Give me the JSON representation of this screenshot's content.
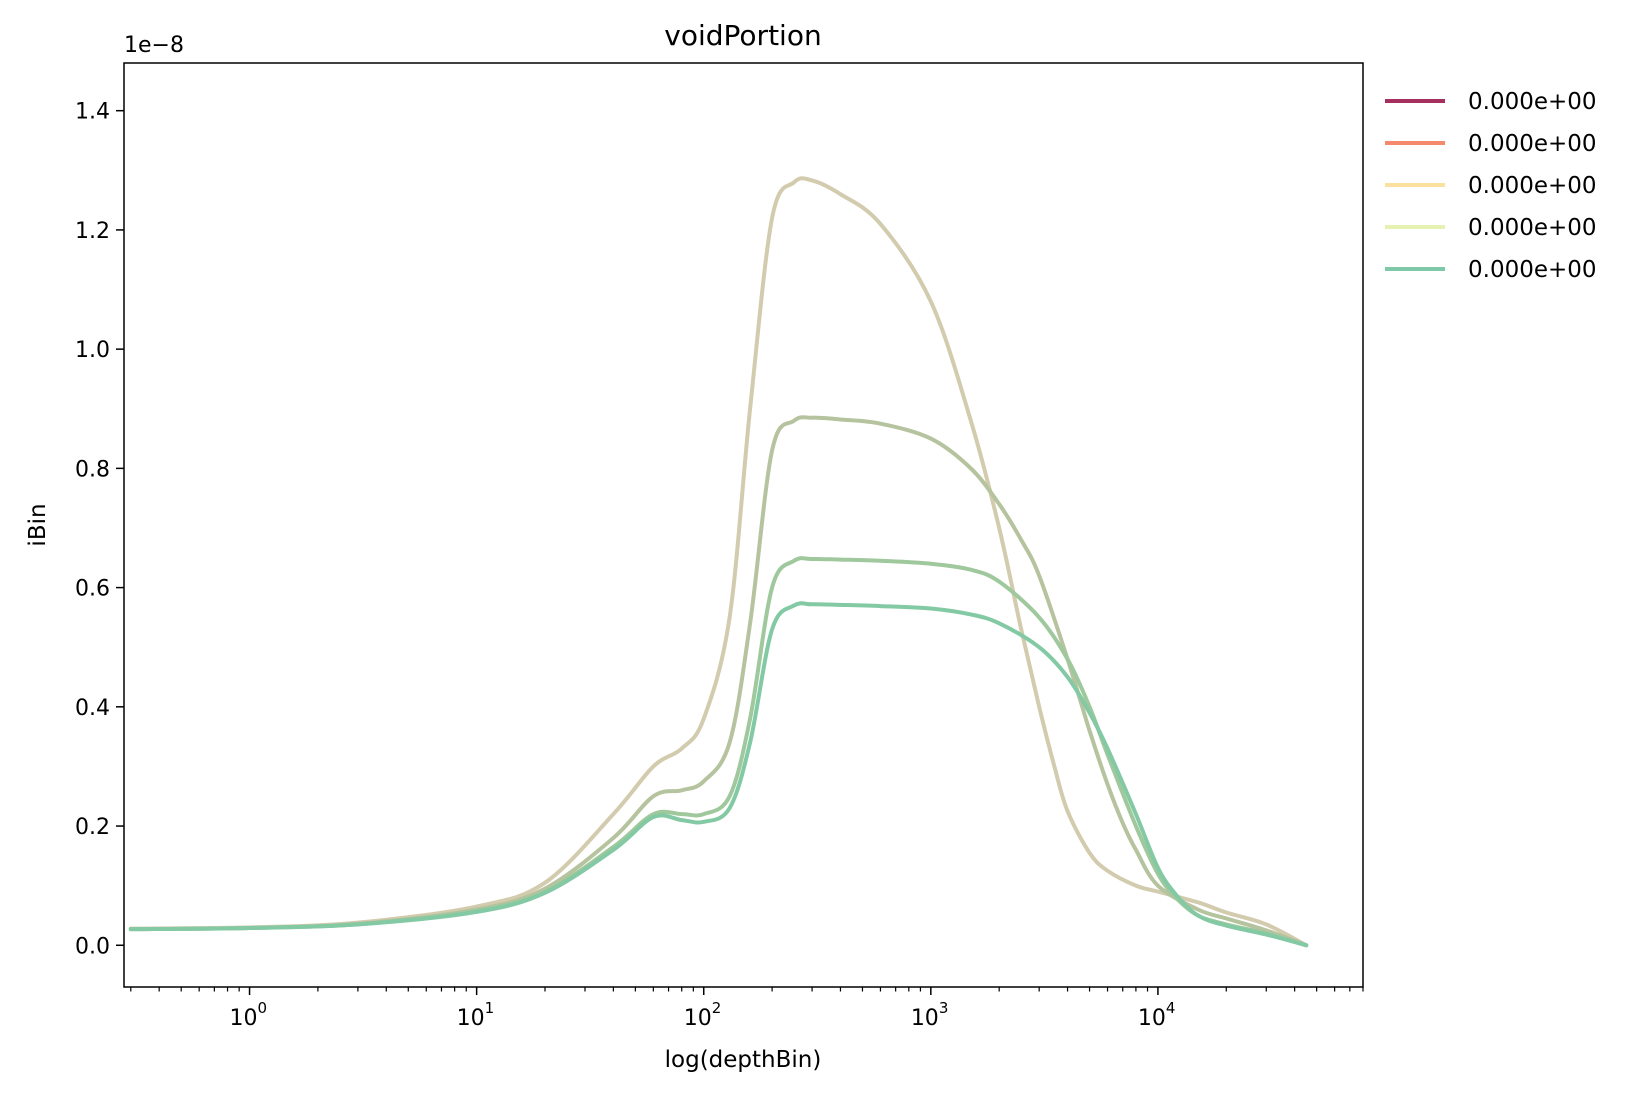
{
  "chart_data": {
    "type": "line",
    "title": "voidPortion",
    "xlabel": "log(depthBin)",
    "ylabel": "iBin",
    "x_scale": "log",
    "xlim": [
      0.28,
      80000
    ],
    "ylim": [
      -7e-10,
      1.48e-08
    ],
    "y_offset_text": "1e−8",
    "x_ticks": [
      {
        "value": 1,
        "base": "10",
        "exp": "0"
      },
      {
        "value": 10,
        "base": "10",
        "exp": "1"
      },
      {
        "value": 100,
        "base": "10",
        "exp": "2"
      },
      {
        "value": 1000,
        "base": "10",
        "exp": "3"
      },
      {
        "value": 10000,
        "base": "10",
        "exp": "4"
      }
    ],
    "y_ticks": [
      {
        "value": 0.0,
        "label": "0.0"
      },
      {
        "value": 2e-09,
        "label": "0.2"
      },
      {
        "value": 4e-09,
        "label": "0.4"
      },
      {
        "value": 6e-09,
        "label": "0.6"
      },
      {
        "value": 8e-09,
        "label": "0.8"
      },
      {
        "value": 1e-08,
        "label": "1.0"
      },
      {
        "value": 1.2e-08,
        "label": "1.2"
      },
      {
        "value": 1.4e-08,
        "label": "1.4"
      }
    ],
    "grid": false,
    "legend_position": "outside-top-right",
    "legend": [
      {
        "label": "0.000e+00",
        "color": "#a3305e"
      },
      {
        "label": "0.000e+00",
        "color": "#f4896b"
      },
      {
        "label": "0.000e+00",
        "color": "#fbe0a0"
      },
      {
        "label": "0.000e+00",
        "color": "#e6f2b2"
      },
      {
        "label": "0.000e+00",
        "color": "#7ec9a8"
      }
    ],
    "series": [
      {
        "color": "#d2cbae",
        "x": [
          0.3,
          1,
          3,
          10,
          20,
          40,
          60,
          80,
          100,
          130,
          160,
          200,
          250,
          300,
          400,
          600,
          1000,
          1500,
          2000,
          2500,
          3000,
          3500,
          4000,
          5000,
          6000,
          8000,
          10000,
          15000,
          20000,
          30000,
          45000
        ],
        "y": [
          2.8e-10,
          3e-10,
          3.8e-10,
          6.5e-10,
          1.05e-09,
          2.2e-09,
          3e-09,
          3.3e-09,
          3.8e-09,
          5.5e-09,
          9e-09,
          1.22e-08,
          1.28e-08,
          1.283e-08,
          1.26e-08,
          1.21e-08,
          1.08e-08,
          8.8e-09,
          7e-09,
          5.3e-09,
          4e-09,
          3e-09,
          2.25e-09,
          1.55e-09,
          1.25e-09,
          1e-09,
          9e-10,
          7.2e-10,
          5.5e-10,
          3.5e-10,
          0.0
        ]
      },
      {
        "color": "#b6c39f",
        "x": [
          0.3,
          1,
          3,
          10,
          20,
          40,
          60,
          80,
          100,
          130,
          160,
          200,
          250,
          300,
          400,
          600,
          1000,
          1500,
          2000,
          2500,
          3000,
          4000,
          5000,
          6000,
          7000,
          8000,
          10000,
          15000,
          20000,
          30000,
          45000
        ],
        "y": [
          2.7e-10,
          2.9e-10,
          3.6e-10,
          6e-10,
          9.5e-10,
          1.8e-09,
          2.5e-09,
          2.6e-09,
          2.75e-09,
          3.4e-09,
          5.4e-09,
          8.3e-09,
          8.8e-09,
          8.85e-09,
          8.82e-09,
          8.75e-09,
          8.5e-09,
          8e-09,
          7.4e-09,
          6.8e-09,
          6.2e-09,
          4.8e-09,
          3.6e-09,
          2.7e-09,
          2.05e-09,
          1.6e-09,
          1e-09,
          6e-10,
          4.5e-10,
          2.5e-10,
          0.0
        ]
      },
      {
        "color": "#9fc89c",
        "x": [
          0.3,
          1,
          3,
          10,
          20,
          40,
          60,
          80,
          100,
          130,
          160,
          200,
          250,
          300,
          400,
          600,
          1000,
          1500,
          2000,
          3000,
          4000,
          5000,
          6000,
          8000,
          10000,
          12000,
          15000,
          20000,
          30000,
          45000
        ],
        "y": [
          2.7e-10,
          2.9e-10,
          3.5e-10,
          5.8e-10,
          9e-10,
          1.65e-09,
          2.2e-09,
          2.2e-09,
          2.2e-09,
          2.5e-09,
          3.8e-09,
          6e-09,
          6.45e-09,
          6.48e-09,
          6.47e-09,
          6.45e-09,
          6.4e-09,
          6.3e-09,
          6.1e-09,
          5.5e-09,
          4.8e-09,
          4e-09,
          3.2e-09,
          2e-09,
          1.2e-09,
          8e-10,
          5e-10,
          3.5e-10,
          2e-10,
          0.0
        ]
      },
      {
        "color": "#82c9a4",
        "x": [
          0.3,
          1,
          3,
          10,
          20,
          40,
          60,
          80,
          100,
          130,
          160,
          200,
          250,
          300,
          400,
          600,
          1000,
          1500,
          2000,
          3000,
          4000,
          5000,
          6000,
          8000,
          10000,
          12000,
          15000,
          20000,
          30000,
          45000
        ],
        "y": [
          2.7e-10,
          2.9e-10,
          3.5e-10,
          5.6e-10,
          8.8e-10,
          1.6e-09,
          2.15e-09,
          2.1e-09,
          2.07e-09,
          2.3e-09,
          3.4e-09,
          5.3e-09,
          5.7e-09,
          5.72e-09,
          5.71e-09,
          5.69e-09,
          5.65e-09,
          5.55e-09,
          5.4e-09,
          5e-09,
          4.5e-09,
          3.9e-09,
          3.3e-09,
          2.2e-09,
          1.3e-09,
          8.5e-10,
          5e-10,
          3.3e-10,
          1.8e-10,
          0.0
        ]
      }
    ]
  }
}
